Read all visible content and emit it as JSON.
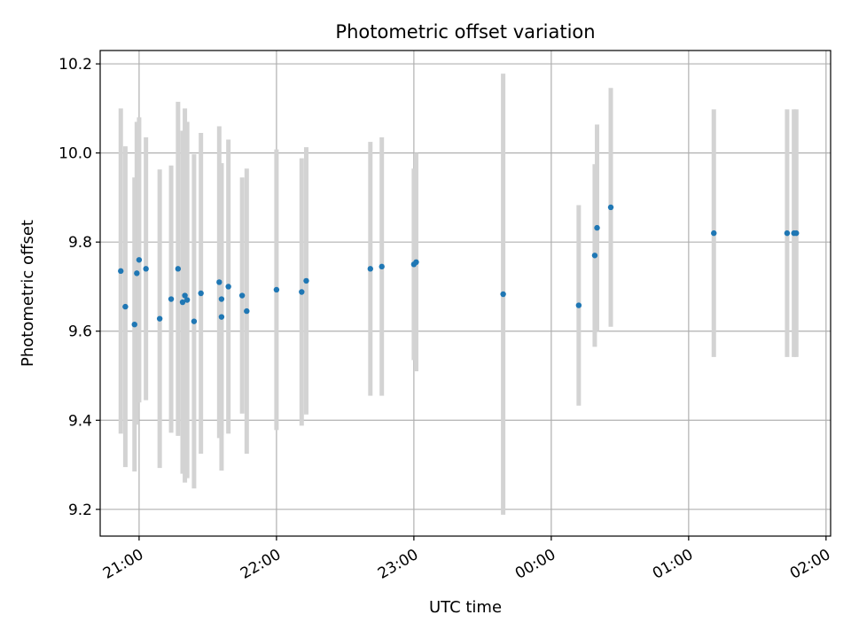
{
  "chart_data": {
    "type": "scatter",
    "title": "Photometric offset variation",
    "xlabel": "UTC time",
    "ylabel": "Photometric offset",
    "x_ticks": [
      "21:00",
      "22:00",
      "23:00",
      "00:00",
      "01:00",
      "02:00"
    ],
    "x_tick_times": [
      "21:00",
      "22:00",
      "23:00",
      "24:00",
      "25:00",
      "26:00"
    ],
    "xlim": [
      "20:43",
      "26:02"
    ],
    "y_ticks": [
      "9.2",
      "9.4",
      "9.6",
      "9.8",
      "10.0",
      "10.2"
    ],
    "ylim": [
      9.14,
      10.23
    ],
    "grid": true,
    "colors": {
      "points": "#1f77b4",
      "errorbars": "#d3d3d3",
      "grid": "#b0b0b0"
    },
    "points": [
      {
        "t": "20:52",
        "y": 9.735,
        "err": 0.365
      },
      {
        "t": "20:54",
        "y": 9.655,
        "err": 0.36
      },
      {
        "t": "20:58",
        "y": 9.615,
        "err": 0.33
      },
      {
        "t": "20:59",
        "y": 9.73,
        "err": 0.34
      },
      {
        "t": "21:00",
        "y": 9.76,
        "err": 0.32
      },
      {
        "t": "21:03",
        "y": 9.74,
        "err": 0.295
      },
      {
        "t": "21:09",
        "y": 9.628,
        "err": 0.335
      },
      {
        "t": "21:14",
        "y": 9.672,
        "err": 0.3
      },
      {
        "t": "21:17",
        "y": 9.74,
        "err": 0.375
      },
      {
        "t": "21:19",
        "y": 9.665,
        "err": 0.385
      },
      {
        "t": "21:20",
        "y": 9.68,
        "err": 0.42
      },
      {
        "t": "21:21",
        "y": 9.67,
        "err": 0.4
      },
      {
        "t": "21:24",
        "y": 9.622,
        "err": 0.375
      },
      {
        "t": "21:27",
        "y": 9.685,
        "err": 0.36
      },
      {
        "t": "21:35",
        "y": 9.71,
        "err": 0.35
      },
      {
        "t": "21:36",
        "y": 9.632,
        "err": 0.345
      },
      {
        "t": "21:36",
        "y": 9.672,
        "err": 0.305
      },
      {
        "t": "21:39",
        "y": 9.7,
        "err": 0.33
      },
      {
        "t": "21:45",
        "y": 9.68,
        "err": 0.265
      },
      {
        "t": "21:47",
        "y": 9.645,
        "err": 0.32
      },
      {
        "t": "22:00",
        "y": 9.693,
        "err": 0.315
      },
      {
        "t": "22:11",
        "y": 9.688,
        "err": 0.3
      },
      {
        "t": "22:13",
        "y": 9.713,
        "err": 0.3
      },
      {
        "t": "22:41",
        "y": 9.74,
        "err": 0.285
      },
      {
        "t": "22:46",
        "y": 9.745,
        "err": 0.29
      },
      {
        "t": "23:00",
        "y": 9.75,
        "err": 0.215
      },
      {
        "t": "23:01",
        "y": 9.755,
        "err": 0.245
      },
      {
        "t": "23:39",
        "y": 9.683,
        "err": 0.495
      },
      {
        "t": "24:12",
        "y": 9.658,
        "err": 0.225
      },
      {
        "t": "24:19",
        "y": 9.77,
        "err": 0.205
      },
      {
        "t": "24:20",
        "y": 9.832,
        "err": 0.232
      },
      {
        "t": "24:26",
        "y": 9.878,
        "err": 0.268
      },
      {
        "t": "25:11",
        "y": 9.82,
        "err": 0.278
      },
      {
        "t": "25:43",
        "y": 9.82,
        "err": 0.278
      },
      {
        "t": "25:46",
        "y": 9.82,
        "err": 0.278
      },
      {
        "t": "25:47",
        "y": 9.82,
        "err": 0.278
      }
    ]
  }
}
